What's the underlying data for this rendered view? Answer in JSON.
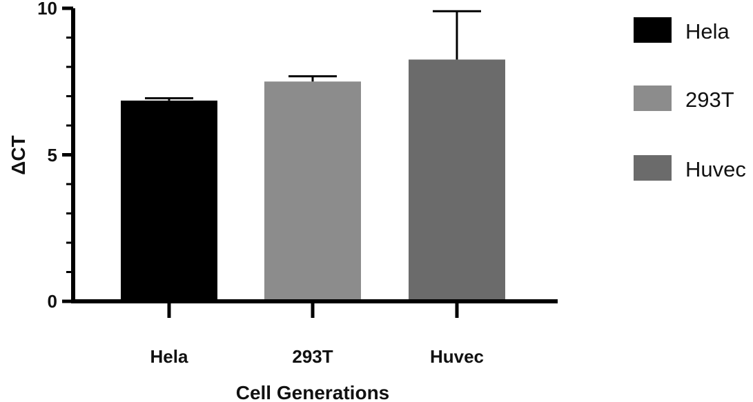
{
  "chart_data": {
    "type": "bar",
    "categories": [
      "Hela",
      "293T",
      "Huvec"
    ],
    "values": [
      6.85,
      7.5,
      8.25
    ],
    "errors": [
      0.08,
      0.18,
      1.65
    ],
    "colors": [
      "#000000",
      "#8c8c8c",
      "#6b6b6b"
    ],
    "xlabel": "Cell Generations",
    "ylabel": "ΔCT",
    "ylim": [
      0,
      10
    ],
    "yticks": [
      "0",
      "5",
      "10"
    ],
    "grid": false,
    "legend": {
      "position": "right",
      "entries": [
        "Hela",
        "293T",
        "Huvec"
      ]
    }
  }
}
